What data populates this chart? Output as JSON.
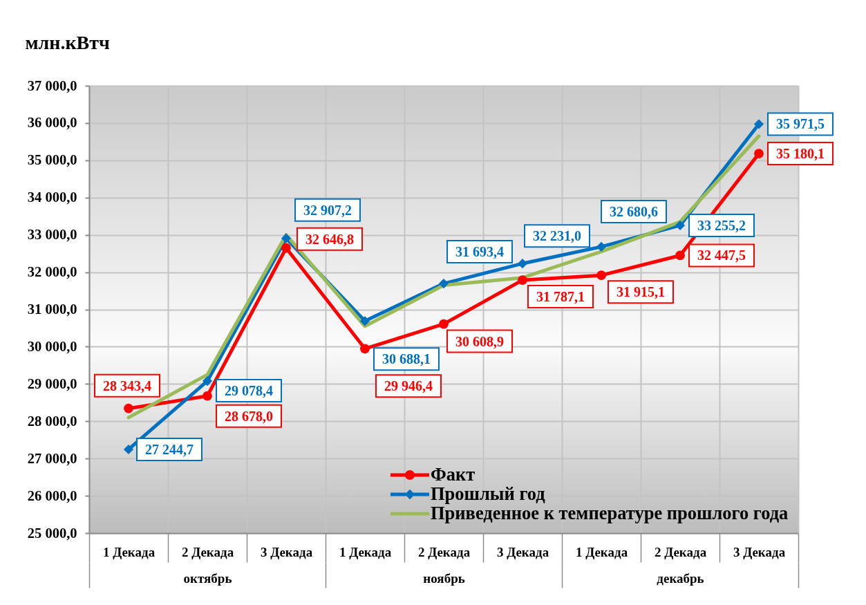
{
  "chart_data": {
    "type": "line",
    "ylabel": "млн.кВтч",
    "categories": [
      "1 Декада",
      "2 Декада",
      "3 Декада",
      "1 Декада",
      "2 Декада",
      "3 Декада",
      "1 Декада",
      "2 Декада",
      "3 Декада"
    ],
    "annotations": [
      "октябрь",
      "ноябрь",
      "декабрь"
    ],
    "series": [
      {
        "name": "Факт",
        "color": "#ff0000",
        "marker": "circle",
        "values": [
          28343.4,
          28678.0,
          32646.8,
          29946.4,
          30608.9,
          31787.1,
          31915.1,
          32447.5,
          35180.1
        ],
        "value_labels": [
          "28 343,4",
          "28 678,0",
          "32 646,8",
          "29 946,4",
          "30 608,9",
          "31 787,1",
          "31 915,1",
          "32 447,5",
          "35 180,1"
        ]
      },
      {
        "name": "Прошлый год",
        "color": "#0070c0",
        "marker": "diamond",
        "values": [
          27244.7,
          29078.4,
          32907.2,
          30688.1,
          31693.4,
          32231.0,
          32680.6,
          33255.2,
          35971.5
        ],
        "value_labels": [
          "27 244,7",
          "29 078,4",
          "32 907,2",
          "30 688,1",
          "31 693,4",
          "32 231,0",
          "32 680,6",
          "33 255,2",
          "35 971,5"
        ]
      },
      {
        "name": "Приведенное к температуре прошлого года",
        "color": "#9bbb59",
        "marker": "none",
        "values": [
          28100,
          29250,
          33000,
          30550,
          31650,
          31850,
          32550,
          33350,
          35650
        ]
      }
    ],
    "ylim": [
      25000,
      37000
    ],
    "yticks": [
      {
        "value": 25000,
        "label": "25 000,0"
      },
      {
        "value": 26000,
        "label": "26 000,0"
      },
      {
        "value": 27000,
        "label": "27 000,0"
      },
      {
        "value": 28000,
        "label": "28 000,0"
      },
      {
        "value": 29000,
        "label": "29 000,0"
      },
      {
        "value": 30000,
        "label": "30 000,0"
      },
      {
        "value": 31000,
        "label": "31 000,0"
      },
      {
        "value": 32000,
        "label": "32 000,0"
      },
      {
        "value": 33000,
        "label": "33 000,0"
      },
      {
        "value": 34000,
        "label": "34 000,0"
      },
      {
        "value": 35000,
        "label": "35 000,0"
      },
      {
        "value": 36000,
        "label": "36 000,0"
      },
      {
        "value": 37000,
        "label": "37 000,0"
      }
    ],
    "grid": true,
    "legend": "bottom right",
    "line_style": "solid"
  }
}
